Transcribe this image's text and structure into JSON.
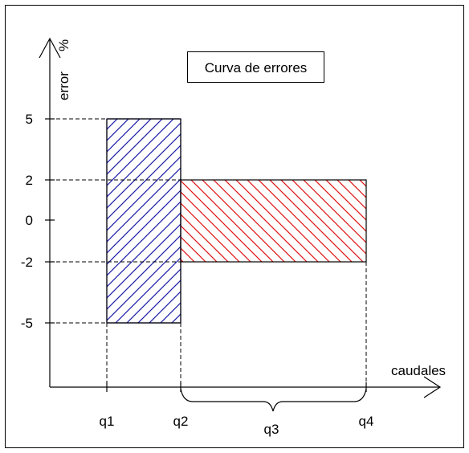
{
  "diagram": {
    "title": "Curva de errores",
    "y_axis_label": "error",
    "y_axis_unit": "%",
    "x_axis_label": "caudales",
    "y_ticks": [
      "5",
      "2",
      "0",
      "-2",
      "-5"
    ],
    "x_ticks": [
      "q1",
      "q2",
      "q4"
    ],
    "brace_label": "q3",
    "colors": {
      "low_flow_zone": "#1a1aa6",
      "high_flow_zone": "#e01010",
      "axes": "#000000",
      "guides": "#000000"
    }
  },
  "chart_data": {
    "type": "area",
    "title": "Curva de errores",
    "xlabel": "caudales",
    "ylabel": "error %",
    "series": [
      {
        "range": [
          "q1",
          "q2"
        ],
        "error_min": -5,
        "error_max": 5,
        "color": "#1a1aa6",
        "hatch": "diagonal"
      },
      {
        "range": [
          "q2",
          "q4"
        ],
        "error_min": -2,
        "error_max": 2,
        "color": "#e01010",
        "hatch": "diagonal"
      }
    ]
  }
}
